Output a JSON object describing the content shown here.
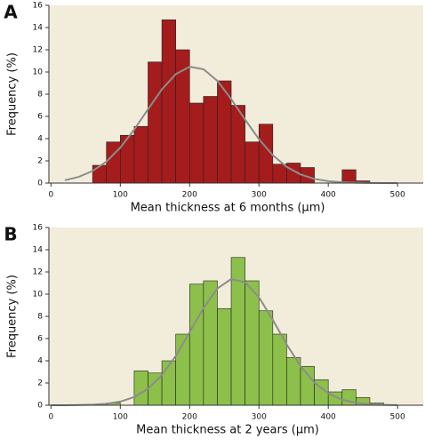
{
  "chart_data": [
    {
      "type": "histogram",
      "panel": "A",
      "xlabel": "Mean thickness at 6 months (µm)",
      "ylabel": "Frequency (%)",
      "bins": [
        60,
        80,
        100,
        120,
        140,
        160,
        180,
        200,
        220,
        240,
        260,
        280,
        300,
        320,
        340,
        360,
        380,
        400,
        420,
        440,
        460
      ],
      "values": [
        1.6,
        3.7,
        4.3,
        5.1,
        10.9,
        14.7,
        12.0,
        7.2,
        7.8,
        9.2,
        7.0,
        3.7,
        5.3,
        1.7,
        1.8,
        1.4,
        0,
        0,
        1.2,
        0.2
      ],
      "color": "#a51c1c",
      "background": "#f2edda",
      "curve": {
        "color": "#8c8c8c",
        "x": [
          20,
          40,
          60,
          80,
          100,
          120,
          140,
          160,
          180,
          200,
          220,
          240,
          260,
          280,
          300,
          320,
          340,
          360,
          380,
          400,
          420,
          440,
          460,
          480,
          500
        ],
        "values": [
          0.26,
          0.55,
          1.09,
          1.94,
          3.19,
          4.81,
          6.65,
          8.44,
          9.81,
          10.47,
          10.25,
          9.2,
          7.57,
          5.72,
          3.96,
          2.51,
          1.46,
          0.78,
          0.38,
          0.17,
          0.07,
          0.03,
          0.01,
          0,
          0
        ]
      },
      "xlim": [
        -3,
        537
      ],
      "ylim": [
        0,
        16
      ],
      "xticks": [
        0,
        100,
        200,
        300,
        400,
        500
      ],
      "yticks": [
        0,
        2,
        4,
        6,
        8,
        10,
        12,
        14,
        16
      ]
    },
    {
      "type": "histogram",
      "panel": "B",
      "xlabel": "Mean thickness at 2 years (µm)",
      "ylabel": "Frequency (%)",
      "bins": [
        80,
        100,
        120,
        140,
        160,
        180,
        200,
        220,
        240,
        260,
        280,
        300,
        320,
        340,
        360,
        380,
        400,
        420,
        440,
        460,
        480
      ],
      "values": [
        0.2,
        0,
        3.1,
        2.9,
        4.0,
        6.4,
        10.9,
        11.2,
        8.7,
        13.3,
        11.2,
        8.5,
        6.4,
        4.3,
        3.5,
        2.3,
        1.2,
        1.4,
        0.7,
        0.2
      ],
      "color": "#8dc04a",
      "background": "#f2edda",
      "curve": {
        "color": "#8c8c8c",
        "x": [
          0,
          20,
          40,
          60,
          80,
          100,
          120,
          140,
          160,
          180,
          200,
          220,
          240,
          260,
          280,
          300,
          320,
          340,
          360,
          380,
          400,
          420,
          440,
          460,
          480,
          500
        ],
        "values": [
          0,
          0,
          0.02,
          0.05,
          0.13,
          0.33,
          0.74,
          1.5,
          2.72,
          4.45,
          6.58,
          8.76,
          10.51,
          11.36,
          11.07,
          9.72,
          7.69,
          5.48,
          3.53,
          2.04,
          1.07,
          0.5,
          0.21,
          0.08,
          0.03,
          0.01
        ]
      },
      "xlim": [
        -3,
        537
      ],
      "ylim": [
        0,
        16
      ],
      "xticks": [
        0,
        100,
        200,
        300,
        400,
        500
      ],
      "yticks": [
        0,
        2,
        4,
        6,
        8,
        10,
        12,
        14,
        16
      ]
    }
  ]
}
